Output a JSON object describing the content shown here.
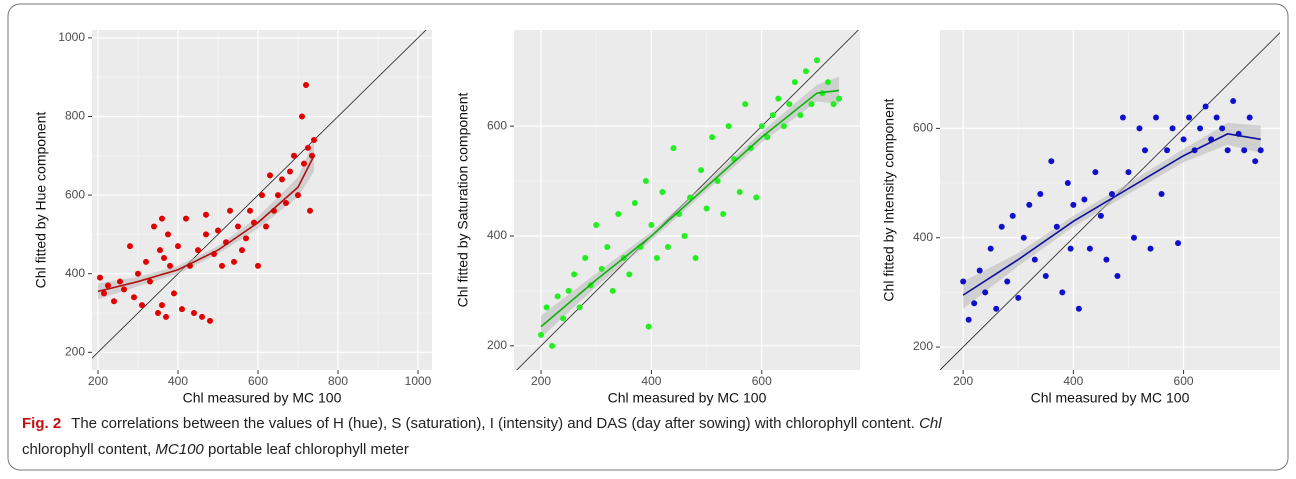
{
  "chart_data": [
    {
      "type": "scatter",
      "xlabel": "Chl measured by MC 100",
      "ylabel": "Chl fitted by Hue component",
      "color": "#e00000",
      "fit_color": "#b01010",
      "band_color": "#b8b8b8",
      "xlim": [
        185,
        1035
      ],
      "ylim": [
        155,
        1020
      ],
      "xticks": [
        200,
        400,
        600,
        800,
        1000
      ],
      "yticks": [
        200,
        400,
        600,
        800,
        1000
      ],
      "x": [
        205,
        215,
        225,
        240,
        255,
        265,
        280,
        290,
        300,
        310,
        320,
        330,
        340,
        350,
        355,
        360,
        365,
        370,
        375,
        380,
        390,
        400,
        410,
        420,
        430,
        440,
        450,
        460,
        470,
        480,
        490,
        500,
        510,
        520,
        530,
        540,
        550,
        560,
        570,
        580,
        590,
        600,
        610,
        620,
        630,
        640,
        650,
        660,
        670,
        680,
        690,
        700,
        710,
        715,
        720,
        725,
        730,
        735,
        740,
        360,
        470
      ],
      "y": [
        390,
        350,
        370,
        330,
        380,
        360,
        470,
        340,
        400,
        320,
        430,
        380,
        520,
        300,
        460,
        320,
        440,
        290,
        500,
        420,
        350,
        470,
        310,
        540,
        420,
        300,
        460,
        290,
        500,
        280,
        450,
        510,
        420,
        480,
        560,
        430,
        520,
        460,
        490,
        560,
        530,
        420,
        600,
        520,
        650,
        560,
        600,
        640,
        580,
        660,
        700,
        600,
        800,
        680,
        880,
        720,
        560,
        700,
        740,
        540,
        550
      ],
      "fit": {
        "x": [
          200,
          300,
          400,
          500,
          600,
          700,
          740
        ],
        "y": [
          355,
          380,
          410,
          460,
          530,
          620,
          700
        ],
        "lower": [
          335,
          368,
          400,
          450,
          515,
          595,
          660
        ],
        "upper": [
          375,
          392,
          420,
          470,
          545,
          645,
          740
        ]
      }
    },
    {
      "type": "scatter",
      "xlabel": "Chl measured by MC 100",
      "ylabel": "Chl fitted by Saturation component",
      "color": "#22ee22",
      "fit_color": "#10b010",
      "band_color": "#b8b8b8",
      "xlim": [
        151,
        778
      ],
      "ylim": [
        156,
        775
      ],
      "xticks": [
        200,
        400,
        600
      ],
      "yticks": [
        200,
        400,
        600
      ],
      "x": [
        200,
        210,
        220,
        230,
        240,
        250,
        260,
        270,
        280,
        290,
        300,
        310,
        320,
        330,
        340,
        350,
        360,
        370,
        380,
        390,
        395,
        400,
        410,
        420,
        430,
        440,
        450,
        460,
        470,
        480,
        490,
        500,
        510,
        520,
        530,
        540,
        550,
        560,
        570,
        580,
        590,
        600,
        610,
        620,
        630,
        640,
        650,
        660,
        670,
        680,
        690,
        700,
        710,
        720,
        730,
        740
      ],
      "y": [
        220,
        270,
        200,
        290,
        250,
        300,
        330,
        270,
        360,
        310,
        420,
        340,
        380,
        300,
        440,
        360,
        330,
        460,
        380,
        500,
        235,
        420,
        360,
        480,
        380,
        560,
        440,
        400,
        470,
        360,
        520,
        450,
        580,
        500,
        440,
        600,
        540,
        480,
        640,
        560,
        470,
        600,
        580,
        620,
        650,
        600,
        640,
        680,
        620,
        700,
        640,
        720,
        660,
        680,
        640,
        650
      ],
      "fit": {
        "x": [
          200,
          300,
          400,
          500,
          600,
          700,
          740
        ],
        "y": [
          235,
          320,
          400,
          490,
          580,
          660,
          665
        ],
        "lower": [
          215,
          308,
          392,
          482,
          570,
          645,
          640
        ],
        "upper": [
          255,
          332,
          408,
          498,
          590,
          675,
          690
        ]
      }
    },
    {
      "type": "scatter",
      "xlabel": "Chl measured by MC 100",
      "ylabel": "Chl fitted by Intensity component",
      "color": "#1010cc",
      "fit_color": "#1010a0",
      "band_color": "#b8b8b8",
      "xlim": [
        158,
        775
      ],
      "ylim": [
        158,
        780
      ],
      "xticks": [
        200,
        400,
        600
      ],
      "yticks": [
        200,
        400,
        600
      ],
      "x": [
        200,
        210,
        220,
        230,
        240,
        250,
        260,
        270,
        280,
        290,
        300,
        310,
        320,
        330,
        340,
        350,
        360,
        370,
        380,
        390,
        395,
        400,
        410,
        420,
        430,
        440,
        450,
        460,
        470,
        480,
        490,
        500,
        510,
        520,
        530,
        540,
        550,
        560,
        570,
        580,
        590,
        600,
        610,
        620,
        630,
        640,
        650,
        660,
        670,
        680,
        690,
        700,
        710,
        720,
        730,
        740
      ],
      "y": [
        320,
        250,
        280,
        340,
        300,
        380,
        270,
        420,
        320,
        440,
        290,
        400,
        460,
        360,
        480,
        330,
        540,
        420,
        300,
        500,
        380,
        460,
        270,
        470,
        380,
        520,
        440,
        360,
        480,
        330,
        620,
        520,
        400,
        600,
        560,
        380,
        620,
        480,
        560,
        600,
        390,
        580,
        620,
        560,
        600,
        640,
        580,
        620,
        600,
        560,
        650,
        590,
        560,
        620,
        540,
        560
      ],
      "fit": {
        "x": [
          200,
          300,
          400,
          500,
          600,
          680,
          740
        ],
        "y": [
          295,
          360,
          430,
          490,
          550,
          590,
          580
        ],
        "lower": [
          270,
          348,
          420,
          480,
          538,
          570,
          555
        ],
        "upper": [
          320,
          372,
          440,
          500,
          562,
          610,
          605
        ]
      }
    }
  ],
  "caption": {
    "label": "Fig. 2",
    "parts": [
      "The correlations between the values of H (hue), S (saturation), I (intensity) and DAS (day after sowing) with chlorophyll content. ",
      "Chl",
      "chlorophyll content, ",
      "MC100",
      " portable leaf chlorophyll meter"
    ]
  }
}
